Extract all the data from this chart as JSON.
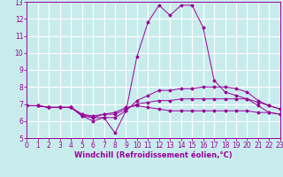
{
  "xlabel": "Windchill (Refroidissement éolien,°C)",
  "background_color": "#c8ecec",
  "grid_color": "#ffffff",
  "line_color": "#990099",
  "x_hours": [
    0,
    1,
    2,
    3,
    4,
    5,
    6,
    7,
    8,
    9,
    10,
    11,
    12,
    13,
    14,
    15,
    16,
    17,
    18,
    19,
    20,
    21,
    22,
    23
  ],
  "series1": [
    6.9,
    6.9,
    6.8,
    6.8,
    6.8,
    6.3,
    6.0,
    6.2,
    5.3,
    6.6,
    9.8,
    11.8,
    12.8,
    12.2,
    12.8,
    12.8,
    11.5,
    8.4,
    7.7,
    7.5,
    7.3,
    6.9,
    6.5,
    6.4
  ],
  "series2": [
    6.9,
    6.9,
    6.8,
    6.8,
    6.8,
    6.3,
    6.2,
    6.2,
    6.2,
    6.6,
    7.2,
    7.5,
    7.8,
    7.8,
    7.9,
    7.9,
    8.0,
    8.0,
    8.0,
    7.9,
    7.7,
    7.2,
    6.9,
    6.7
  ],
  "series3": [
    6.9,
    6.9,
    6.8,
    6.8,
    6.8,
    6.4,
    6.2,
    6.4,
    6.4,
    6.7,
    7.0,
    7.1,
    7.2,
    7.2,
    7.3,
    7.3,
    7.3,
    7.3,
    7.3,
    7.3,
    7.3,
    7.1,
    6.9,
    6.7
  ],
  "series4": [
    6.9,
    6.9,
    6.8,
    6.8,
    6.8,
    6.4,
    6.3,
    6.4,
    6.5,
    6.8,
    6.9,
    6.8,
    6.7,
    6.6,
    6.6,
    6.6,
    6.6,
    6.6,
    6.6,
    6.6,
    6.6,
    6.5,
    6.5,
    6.4
  ],
  "ylim": [
    5,
    13
  ],
  "xlim": [
    0,
    23
  ],
  "yticks": [
    5,
    6,
    7,
    8,
    9,
    10,
    11,
    12,
    13
  ],
  "xticks": [
    0,
    1,
    2,
    3,
    4,
    5,
    6,
    7,
    8,
    9,
    10,
    11,
    12,
    13,
    14,
    15,
    16,
    17,
    18,
    19,
    20,
    21,
    22,
    23
  ],
  "tick_fontsize": 5.5,
  "xlabel_fontsize": 6.0
}
